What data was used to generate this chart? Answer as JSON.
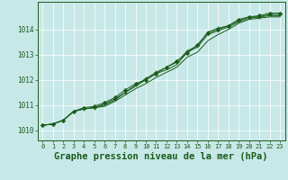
{
  "background_color": "#c8e8e8",
  "plot_bg_color": "#c8e8e8",
  "grid_color": "#b0d8d8",
  "line_color": "#1a5c1a",
  "marker_color": "#1a5c1a",
  "title": "Graphe pression niveau de la mer (hPa)",
  "title_fontsize": 7.5,
  "xlim": [
    -0.5,
    23.5
  ],
  "ylim": [
    1009.6,
    1015.1
  ],
  "yticks": [
    1010,
    1011,
    1012,
    1013,
    1014
  ],
  "xticks": [
    0,
    1,
    2,
    3,
    4,
    5,
    6,
    7,
    8,
    9,
    10,
    11,
    12,
    13,
    14,
    15,
    16,
    17,
    18,
    19,
    20,
    21,
    22,
    23
  ],
  "series": [
    [
      1010.2,
      1010.25,
      1010.4,
      1010.75,
      1010.9,
      1010.95,
      1011.1,
      1011.3,
      1011.6,
      1011.85,
      1012.0,
      1012.25,
      1012.5,
      1012.75,
      1013.05,
      1013.4,
      1013.85,
      1014.0,
      1014.15,
      1014.4,
      1014.5,
      1014.55,
      1014.65,
      1014.65
    ],
    [
      1010.2,
      1010.25,
      1010.4,
      1010.75,
      1010.85,
      1010.9,
      1011.05,
      1011.25,
      1011.5,
      1011.8,
      1012.05,
      1012.3,
      1012.5,
      1012.7,
      1013.15,
      1013.35,
      1013.9,
      1014.05,
      1014.15,
      1014.35,
      1014.5,
      1014.5,
      1014.6,
      1014.6
    ],
    [
      1010.2,
      1010.25,
      1010.4,
      1010.75,
      1010.85,
      1010.9,
      1011.0,
      1011.2,
      1011.5,
      1011.75,
      1012.0,
      1012.25,
      1012.4,
      1012.6,
      1013.1,
      1013.3,
      1013.8,
      1013.95,
      1014.1,
      1014.3,
      1014.45,
      1014.5,
      1014.55,
      1014.55
    ],
    [
      1010.2,
      1010.25,
      1010.4,
      1010.75,
      1010.85,
      1010.9,
      1010.95,
      1011.15,
      1011.4,
      1011.65,
      1011.85,
      1012.1,
      1012.3,
      1012.5,
      1012.9,
      1013.1,
      1013.55,
      1013.8,
      1014.0,
      1014.25,
      1014.4,
      1014.45,
      1014.5,
      1014.5
    ]
  ]
}
